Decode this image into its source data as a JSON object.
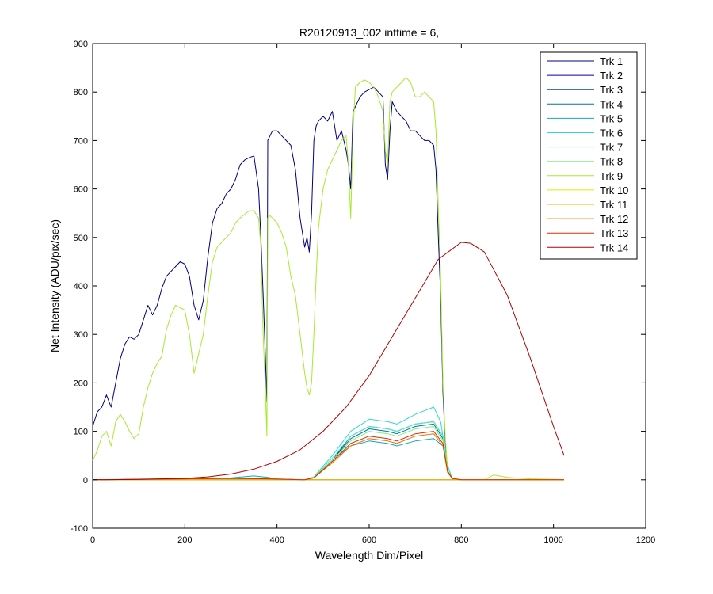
{
  "chart_data": {
    "type": "line",
    "title": "R20120913_002 inttime = 6,",
    "xlabel": "Wavelength Dim/Pixel",
    "ylabel": "Net Intensity (ADU/pix/sec)",
    "xlim": [
      0,
      1200
    ],
    "ylim": [
      -100,
      900
    ],
    "xticks": [
      0,
      200,
      400,
      600,
      800,
      1000,
      1200
    ],
    "yticks": [
      -100,
      0,
      100,
      200,
      300,
      400,
      500,
      600,
      700,
      800,
      900
    ],
    "grid": false,
    "legend_position": "top-right",
    "series": [
      {
        "name": "Trk 1",
        "color": "#00007f",
        "x": [
          0,
          10,
          20,
          30,
          40,
          50,
          60,
          70,
          80,
          90,
          100,
          110,
          120,
          130,
          140,
          150,
          160,
          170,
          180,
          190,
          200,
          210,
          220,
          230,
          240,
          250,
          260,
          270,
          280,
          290,
          300,
          310,
          320,
          330,
          340,
          350,
          360,
          365,
          370,
          375,
          378,
          380,
          385,
          390,
          400,
          410,
          420,
          430,
          440,
          450,
          455,
          460,
          465,
          470,
          475,
          480,
          485,
          490,
          500,
          510,
          520,
          530,
          540,
          550,
          555,
          560,
          565,
          570,
          580,
          590,
          600,
          610,
          620,
          630,
          635,
          640,
          645,
          650,
          660,
          670,
          680,
          690,
          700,
          710,
          720,
          730,
          740,
          745,
          750,
          755,
          760,
          765,
          770,
          780,
          800,
          850,
          900,
          950,
          1000,
          1023
        ],
        "y": [
          110,
          140,
          150,
          175,
          150,
          200,
          250,
          280,
          295,
          290,
          300,
          330,
          360,
          340,
          360,
          395,
          420,
          430,
          440,
          450,
          445,
          420,
          360,
          330,
          370,
          460,
          530,
          560,
          570,
          590,
          600,
          620,
          650,
          660,
          665,
          668,
          600,
          500,
          380,
          250,
          160,
          700,
          710,
          720,
          720,
          710,
          700,
          690,
          640,
          540,
          510,
          480,
          500,
          470,
          550,
          700,
          730,
          740,
          750,
          740,
          760,
          700,
          720,
          680,
          650,
          600,
          760,
          770,
          790,
          800,
          805,
          810,
          800,
          790,
          650,
          620,
          720,
          780,
          760,
          750,
          740,
          720,
          720,
          710,
          700,
          700,
          690,
          640,
          500,
          380,
          180,
          80,
          20,
          2,
          0,
          0,
          0,
          0,
          0,
          0
        ]
      },
      {
        "name": "Trk 2",
        "color": "#0000a8",
        "x": [
          0,
          100,
          200,
          300,
          400,
          500,
          600,
          700,
          740,
          760,
          800,
          1023
        ],
        "y": [
          0,
          0,
          0,
          0,
          0,
          0,
          0,
          0,
          0,
          0,
          0,
          0
        ]
      },
      {
        "name": "Trk 3",
        "color": "#0047b0",
        "x": [
          0,
          300,
          380,
          460,
          480,
          520,
          560,
          600,
          640,
          660,
          700,
          740,
          760,
          770,
          780,
          800,
          1023
        ],
        "y": [
          0,
          3,
          2,
          0,
          5,
          40,
          90,
          110,
          105,
          100,
          115,
          120,
          90,
          20,
          3,
          0,
          0
        ]
      },
      {
        "name": "Trk 4",
        "color": "#00779a",
        "x": [
          0,
          300,
          380,
          460,
          480,
          520,
          560,
          600,
          640,
          660,
          700,
          740,
          760,
          770,
          780,
          800,
          1023
        ],
        "y": [
          0,
          3,
          2,
          0,
          5,
          40,
          85,
          105,
          100,
          95,
          110,
          115,
          85,
          20,
          3,
          0,
          0
        ]
      },
      {
        "name": "Trk 5",
        "color": "#11a7c7",
        "x": [
          0,
          300,
          350,
          380,
          400,
          460,
          480,
          520,
          560,
          600,
          640,
          660,
          700,
          740,
          760,
          770,
          780,
          800,
          1023
        ],
        "y": [
          0,
          4,
          8,
          5,
          2,
          0,
          5,
          40,
          70,
          80,
          75,
          70,
          80,
          85,
          70,
          20,
          3,
          0,
          0
        ]
      },
      {
        "name": "Trk 6",
        "color": "#2fd8d0",
        "x": [
          0,
          300,
          380,
          460,
          480,
          520,
          560,
          600,
          640,
          660,
          700,
          740,
          755,
          770,
          780,
          800,
          1023
        ],
        "y": [
          0,
          3,
          2,
          0,
          6,
          50,
          100,
          125,
          120,
          115,
          135,
          150,
          120,
          30,
          3,
          0,
          0
        ]
      },
      {
        "name": "Trk 7",
        "color": "#52f0c8",
        "x": [
          0,
          300,
          380,
          460,
          480,
          520,
          560,
          600,
          640,
          660,
          700,
          740,
          760,
          770,
          780,
          800,
          1023
        ],
        "y": [
          0,
          3,
          2,
          0,
          5,
          45,
          90,
          110,
          105,
          100,
          115,
          120,
          90,
          20,
          3,
          0,
          0
        ]
      },
      {
        "name": "Trk 8",
        "color": "#80f080",
        "x": [
          0,
          300,
          380,
          460,
          480,
          520,
          560,
          600,
          640,
          660,
          700,
          740,
          760,
          770,
          780,
          800,
          1023
        ],
        "y": [
          0,
          3,
          2,
          0,
          5,
          40,
          80,
          100,
          95,
          90,
          105,
          110,
          80,
          20,
          3,
          0,
          0
        ]
      },
      {
        "name": "Trk 9",
        "color": "#a8e830",
        "x": [
          0,
          10,
          20,
          30,
          40,
          50,
          60,
          70,
          80,
          90,
          100,
          110,
          120,
          130,
          140,
          150,
          160,
          170,
          180,
          190,
          200,
          210,
          220,
          230,
          240,
          250,
          260,
          270,
          280,
          290,
          300,
          310,
          320,
          330,
          340,
          350,
          360,
          365,
          370,
          375,
          378,
          380,
          385,
          390,
          400,
          410,
          420,
          430,
          440,
          450,
          455,
          460,
          465,
          470,
          475,
          480,
          485,
          490,
          500,
          510,
          520,
          530,
          540,
          550,
          555,
          560,
          565,
          570,
          580,
          590,
          600,
          610,
          620,
          630,
          635,
          640,
          645,
          650,
          660,
          670,
          680,
          690,
          700,
          710,
          720,
          730,
          740,
          745,
          750,
          755,
          760,
          765,
          770,
          780,
          800,
          850,
          870,
          900,
          950,
          1000,
          1023
        ],
        "y": [
          40,
          60,
          90,
          100,
          70,
          120,
          135,
          120,
          100,
          85,
          95,
          150,
          190,
          220,
          240,
          255,
          310,
          340,
          360,
          355,
          350,
          300,
          220,
          260,
          300,
          380,
          450,
          480,
          490,
          500,
          510,
          530,
          540,
          548,
          555,
          555,
          540,
          480,
          300,
          180,
          90,
          540,
          545,
          540,
          530,
          510,
          480,
          420,
          380,
          300,
          260,
          220,
          190,
          175,
          200,
          300,
          420,
          520,
          600,
          640,
          660,
          680,
          700,
          710,
          650,
          540,
          720,
          810,
          820,
          825,
          820,
          810,
          790,
          760,
          680,
          650,
          780,
          800,
          810,
          820,
          830,
          820,
          790,
          790,
          800,
          790,
          780,
          720,
          560,
          420,
          200,
          90,
          20,
          3,
          0,
          0,
          10,
          5,
          2,
          1,
          0
        ]
      },
      {
        "name": "Trk 10",
        "color": "#d8f000",
        "x": [
          0,
          100,
          200,
          300,
          400,
          500,
          600,
          700,
          740,
          760,
          800,
          1023
        ],
        "y": [
          0,
          0,
          0,
          0,
          0,
          0,
          0,
          0,
          0,
          0,
          0,
          0
        ]
      },
      {
        "name": "Trk 11",
        "color": "#f0b800",
        "x": [
          0,
          100,
          200,
          300,
          400,
          500,
          600,
          700,
          740,
          760,
          800,
          1023
        ],
        "y": [
          0,
          0,
          0,
          0,
          0,
          0,
          0,
          0,
          0,
          0,
          0,
          0
        ]
      },
      {
        "name": "Trk 12",
        "color": "#f07000",
        "x": [
          0,
          300,
          380,
          460,
          480,
          520,
          560,
          600,
          640,
          660,
          700,
          740,
          760,
          770,
          780,
          800,
          1023
        ],
        "y": [
          0,
          3,
          2,
          0,
          4,
          35,
          70,
          85,
          80,
          75,
          90,
          95,
          70,
          15,
          3,
          0,
          0
        ]
      },
      {
        "name": "Trk 13",
        "color": "#d83000",
        "x": [
          0,
          300,
          380,
          460,
          480,
          520,
          560,
          600,
          640,
          660,
          700,
          740,
          760,
          770,
          780,
          800,
          1023
        ],
        "y": [
          0,
          3,
          2,
          0,
          4,
          38,
          75,
          90,
          85,
          80,
          95,
          100,
          75,
          18,
          3,
          0,
          0
        ]
      },
      {
        "name": "Trk 14",
        "color": "#b00000",
        "x": [
          0,
          100,
          200,
          250,
          300,
          350,
          400,
          450,
          500,
          550,
          600,
          650,
          700,
          750,
          800,
          820,
          850,
          900,
          950,
          1000,
          1023
        ],
        "y": [
          0,
          1,
          3,
          6,
          12,
          22,
          38,
          62,
          100,
          150,
          215,
          295,
          375,
          455,
          490,
          488,
          470,
          380,
          250,
          110,
          50
        ]
      }
    ]
  }
}
